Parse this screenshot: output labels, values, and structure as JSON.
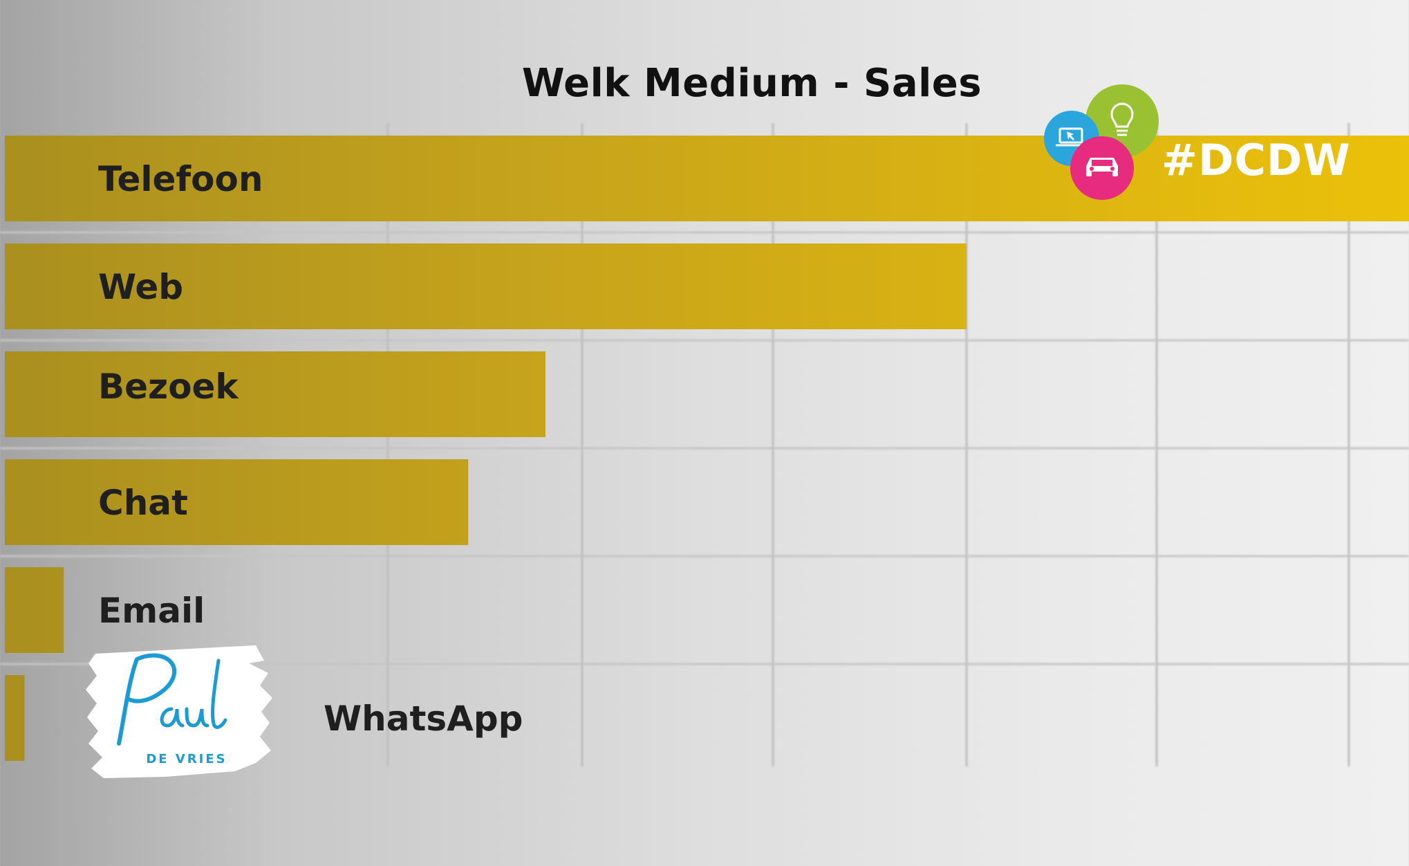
{
  "chart_data": {
    "type": "bar",
    "orientation": "horizontal",
    "title": "Welk Medium - Sales",
    "categories": [
      "Telefoon",
      "Web",
      "Bezoek",
      "Chat",
      "Email",
      "WhatsApp"
    ],
    "values": [
      100,
      68.5,
      38.5,
      33,
      4.2,
      1.4
    ],
    "xlim": [
      0,
      100
    ],
    "grid": true,
    "bar_color": "#c9a51a",
    "bar_color_end": "#ecc10a"
  },
  "branding": {
    "hashtag": "#DCDW",
    "logo_icons": [
      "laptop-cursor-icon",
      "lightbulb-icon",
      "car-icon"
    ],
    "logo_colors": [
      "#2aa6dd",
      "#9ac131",
      "#e72b7f"
    ],
    "signature_text": "Paul",
    "signature_subtext": "DE VRIES",
    "signature_color": "#1c9bd3"
  }
}
